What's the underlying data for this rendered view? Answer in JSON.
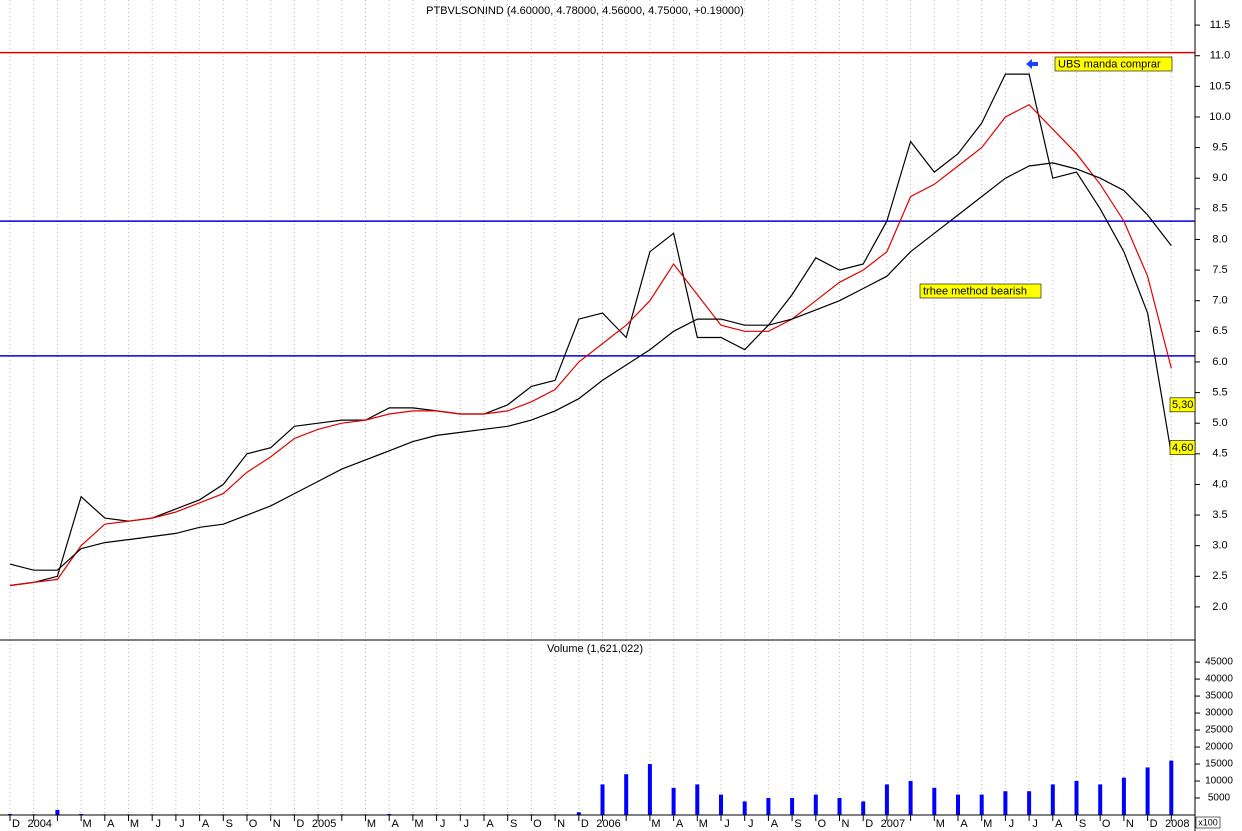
{
  "chart_data": [
    {
      "type": "line",
      "title": "PTBVLSONIND (4.60000, 4.78000, 4.56000, 4.75000, +0.19000)",
      "ylim": [
        1.46,
        11.91
      ],
      "yticks": [
        {
          "value": 2,
          "label": "2.0"
        },
        2.5,
        {
          "value": 3,
          "label": "3.0"
        },
        3.5,
        {
          "value": 4,
          "label": "4.0"
        },
        4.5,
        {
          "value": 5,
          "label": "5.0"
        },
        5.5,
        {
          "value": 6,
          "label": "6.0"
        },
        6.5,
        {
          "value": 7,
          "label": "7.0"
        },
        7.5,
        {
          "value": 8,
          "label": "8.0"
        },
        8.5,
        {
          "value": 9,
          "label": "9.0"
        },
        9.5,
        {
          "value": 10,
          "label": "10.0"
        },
        10.5,
        {
          "value": 11,
          "label": "11.0"
        },
        11.5
      ],
      "grid": true,
      "series": [
        {
          "color": "#000000",
          "values": [
            2.35,
            2.4,
            2.5,
            3.8,
            3.45,
            3.4,
            3.45,
            3.6,
            3.75,
            4.0,
            4.5,
            4.6,
            4.95,
            5.0,
            5.05,
            5.05,
            5.25,
            5.25,
            5.2,
            5.15,
            5.15,
            5.3,
            5.6,
            5.7,
            6.7,
            6.8,
            6.4,
            7.8,
            8.1,
            6.4,
            6.4,
            6.2,
            6.6,
            7.1,
            7.7,
            7.5,
            7.6,
            8.3,
            9.6,
            9.1,
            9.4,
            9.9,
            10.7,
            10.7,
            9.0,
            9.1,
            8.5,
            7.8,
            6.8,
            4.5
          ]
        },
        {
          "color": "#e00000",
          "values": [
            2.35,
            2.4,
            2.45,
            3.0,
            3.35,
            3.4,
            3.45,
            3.55,
            3.7,
            3.85,
            4.2,
            4.45,
            4.75,
            4.9,
            5.0,
            5.05,
            5.15,
            5.2,
            5.2,
            5.15,
            5.15,
            5.2,
            5.35,
            5.55,
            6.0,
            6.3,
            6.6,
            7.0,
            7.6,
            7.1,
            6.6,
            6.5,
            6.5,
            6.7,
            7.0,
            7.3,
            7.5,
            7.8,
            8.7,
            8.9,
            9.2,
            9.5,
            10.0,
            10.2,
            9.8,
            9.4,
            8.9,
            8.3,
            7.4,
            5.9
          ]
        },
        {
          "color": "#000000",
          "values": [
            2.7,
            2.6,
            2.6,
            2.95,
            3.05,
            3.1,
            3.15,
            3.2,
            3.3,
            3.35,
            3.5,
            3.65,
            3.85,
            4.05,
            4.25,
            4.4,
            4.55,
            4.7,
            4.8,
            4.85,
            4.9,
            4.95,
            5.05,
            5.2,
            5.4,
            5.7,
            5.95,
            6.2,
            6.5,
            6.7,
            6.7,
            6.6,
            6.6,
            6.7,
            6.85,
            7.0,
            7.2,
            7.4,
            7.8,
            8.1,
            8.4,
            8.7,
            9.0,
            9.2,
            9.25,
            9.15,
            9.0,
            8.8,
            8.4,
            7.9
          ]
        }
      ],
      "hlines": [
        {
          "value": 11.05,
          "color": "#e00000"
        },
        {
          "value": 8.3,
          "color": "#0000e0"
        },
        {
          "value": 6.1,
          "color": "#0000e0"
        }
      ],
      "annotations": [
        "UBS manda comprar",
        "trhee method bearish"
      ],
      "price_tags": [
        {
          "value": 5.3,
          "label": "5,30"
        },
        {
          "value": 4.6,
          "label": "4,60"
        }
      ]
    },
    {
      "type": "bar",
      "title": "Volume (1,621,022)",
      "unit_label": "x100",
      "categories": [
        "D",
        "2004",
        null,
        "M",
        "A",
        "M",
        "J",
        "J",
        "A",
        "S",
        "O",
        "N",
        "D",
        "2005",
        null,
        "M",
        "A",
        "M",
        "J",
        "J",
        "A",
        "S",
        "O",
        "N",
        "D",
        "2006",
        null,
        "M",
        "A",
        "M",
        "J",
        "J",
        "A",
        "S",
        "O",
        "N",
        "D",
        "2007",
        null,
        "M",
        "A",
        "M",
        "J",
        "J",
        "A",
        "S",
        "O",
        "N",
        "D",
        "2008"
      ],
      "values": [
        300,
        200,
        1500,
        300,
        200,
        200,
        200,
        200,
        200,
        200,
        200,
        200,
        200,
        200,
        200,
        200,
        300,
        200,
        200,
        200,
        200,
        200,
        200,
        200,
        800,
        9000,
        12000,
        15000,
        8000,
        9000,
        6000,
        4000,
        5000,
        5000,
        6000,
        5000,
        4000,
        9000,
        10000,
        8000,
        6000,
        6000,
        7000,
        7000,
        9000,
        10000,
        9000,
        11000,
        14000,
        16000
      ],
      "color": "#0000ff",
      "ylim": [
        0,
        51500
      ],
      "yticks": [
        5000,
        10000,
        15000,
        20000,
        25000,
        30000,
        35000,
        40000,
        45000
      ]
    }
  ]
}
